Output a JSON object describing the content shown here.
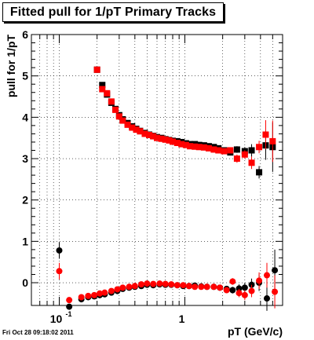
{
  "chart_data": {
    "type": "scatter",
    "title": "Fitted pull for 1/pT  Primary Tracks",
    "xlabel": "pT (GeV/c)",
    "ylabel": "pull for 1/pT",
    "x_scale": "log",
    "xlim": [
      0.06,
      6.0
    ],
    "ylim": [
      -0.55,
      6.0
    ],
    "grid": true,
    "x_tick_labels": [
      {
        "value": 0.1,
        "base": "10",
        "exp": "-1"
      },
      {
        "value": 1,
        "base": "1",
        "exp": ""
      }
    ],
    "y_ticks": [
      0,
      1,
      2,
      3,
      4,
      5,
      6
    ],
    "series": [
      {
        "color": "#000000",
        "points": [
          [
            0.1,
            0.78,
            0.2
          ],
          [
            0.2,
            5.15,
            0
          ],
          [
            0.22,
            4.78,
            0
          ],
          [
            0.24,
            4.55,
            0
          ],
          [
            0.26,
            4.35,
            0
          ],
          [
            0.28,
            4.2,
            0
          ],
          [
            0.3,
            4.05,
            0
          ],
          [
            0.32,
            3.95,
            0
          ],
          [
            0.35,
            3.86,
            0
          ],
          [
            0.38,
            3.78,
            0
          ],
          [
            0.41,
            3.72,
            0
          ],
          [
            0.44,
            3.67,
            0
          ],
          [
            0.48,
            3.62,
            0
          ],
          [
            0.52,
            3.58,
            0
          ],
          [
            0.56,
            3.55,
            0
          ],
          [
            0.6,
            3.52,
            0
          ],
          [
            0.65,
            3.5,
            0
          ],
          [
            0.7,
            3.47,
            0
          ],
          [
            0.75,
            3.45,
            0
          ],
          [
            0.8,
            3.43,
            0
          ],
          [
            0.87,
            3.42,
            0
          ],
          [
            0.94,
            3.4,
            0
          ],
          [
            1.02,
            3.37,
            0
          ],
          [
            1.1,
            3.35,
            0
          ],
          [
            1.2,
            3.35,
            0
          ],
          [
            1.3,
            3.33,
            0
          ],
          [
            1.42,
            3.32,
            0
          ],
          [
            1.55,
            3.3,
            0
          ],
          [
            1.7,
            3.28,
            0
          ],
          [
            1.85,
            3.25,
            0
          ],
          [
            2.05,
            3.2,
            0
          ],
          [
            2.3,
            3.15,
            0
          ],
          [
            2.6,
            3.22,
            0.08
          ],
          [
            3.0,
            3.18,
            0.1
          ],
          [
            3.4,
            3.2,
            0.15
          ],
          [
            3.9,
            2.67,
            0.15
          ],
          [
            4.4,
            3.32,
            0.35
          ],
          [
            5.0,
            3.28,
            0.6
          ],
          [
            0.12,
            -0.58,
            0
          ],
          [
            0.15,
            -0.4,
            0
          ],
          [
            0.17,
            -0.35,
            0
          ],
          [
            0.19,
            -0.33,
            0
          ],
          [
            0.21,
            -0.3,
            0
          ],
          [
            0.23,
            -0.28,
            0
          ],
          [
            0.26,
            -0.24,
            0
          ],
          [
            0.29,
            -0.2,
            0
          ],
          [
            0.32,
            -0.15,
            0
          ],
          [
            0.36,
            -0.12,
            0
          ],
          [
            0.4,
            -0.1,
            0
          ],
          [
            0.45,
            -0.08,
            0
          ],
          [
            0.5,
            -0.05,
            0
          ],
          [
            0.56,
            -0.06,
            0
          ],
          [
            0.63,
            -0.04,
            0
          ],
          [
            0.7,
            -0.05,
            0
          ],
          [
            0.78,
            -0.05,
            0
          ],
          [
            0.87,
            -0.06,
            0
          ],
          [
            0.97,
            -0.08,
            0
          ],
          [
            1.08,
            -0.08,
            0
          ],
          [
            1.2,
            -0.07,
            0
          ],
          [
            1.35,
            -0.09,
            0
          ],
          [
            1.5,
            -0.1,
            0
          ],
          [
            1.7,
            -0.1,
            0
          ],
          [
            1.9,
            -0.12,
            0
          ],
          [
            2.15,
            -0.15,
            0.05
          ],
          [
            2.4,
            -0.18,
            0.08
          ],
          [
            2.7,
            -0.14,
            0.1
          ],
          [
            3.0,
            -0.12,
            0.12
          ],
          [
            3.4,
            -0.05,
            0.15
          ],
          [
            3.9,
            0.0,
            0.2
          ],
          [
            4.5,
            -0.38,
            0.3
          ],
          [
            5.2,
            0.3,
            0.5
          ]
        ]
      },
      {
        "color": "#ff0000",
        "points": [
          [
            0.1,
            0.28,
            0.2
          ],
          [
            0.2,
            5.15,
            0
          ],
          [
            0.22,
            4.68,
            0
          ],
          [
            0.24,
            4.58,
            0
          ],
          [
            0.26,
            4.38,
            0
          ],
          [
            0.28,
            4.18,
            0
          ],
          [
            0.3,
            4.02,
            0
          ],
          [
            0.32,
            3.92,
            0
          ],
          [
            0.35,
            3.82,
            0
          ],
          [
            0.38,
            3.75,
            0
          ],
          [
            0.41,
            3.7,
            0
          ],
          [
            0.44,
            3.66,
            0
          ],
          [
            0.48,
            3.6,
            0
          ],
          [
            0.52,
            3.57,
            0
          ],
          [
            0.56,
            3.54,
            0
          ],
          [
            0.6,
            3.5,
            0
          ],
          [
            0.65,
            3.48,
            0
          ],
          [
            0.7,
            3.46,
            0
          ],
          [
            0.75,
            3.44,
            0
          ],
          [
            0.8,
            3.41,
            0
          ],
          [
            0.87,
            3.38,
            0
          ],
          [
            0.94,
            3.35,
            0
          ],
          [
            1.02,
            3.33,
            0
          ],
          [
            1.1,
            3.3,
            0
          ],
          [
            1.2,
            3.29,
            0
          ],
          [
            1.3,
            3.28,
            0
          ],
          [
            1.42,
            3.27,
            0
          ],
          [
            1.55,
            3.25,
            0
          ],
          [
            1.7,
            3.22,
            0
          ],
          [
            1.85,
            3.2,
            0
          ],
          [
            2.05,
            3.18,
            0
          ],
          [
            2.3,
            3.2,
            0
          ],
          [
            2.6,
            3.0,
            0.1
          ],
          [
            3.0,
            3.1,
            0.1
          ],
          [
            3.4,
            2.9,
            0.15
          ],
          [
            3.9,
            3.28,
            0.15
          ],
          [
            4.4,
            3.58,
            0.35
          ],
          [
            5.0,
            3.42,
            0.5
          ],
          [
            0.12,
            -0.42,
            0
          ],
          [
            0.15,
            -0.35,
            0
          ],
          [
            0.17,
            -0.32,
            0
          ],
          [
            0.19,
            -0.3,
            0
          ],
          [
            0.21,
            -0.26,
            0
          ],
          [
            0.23,
            -0.24,
            0
          ],
          [
            0.26,
            -0.2,
            0
          ],
          [
            0.29,
            -0.16,
            0
          ],
          [
            0.32,
            -0.12,
            0
          ],
          [
            0.36,
            -0.1,
            0
          ],
          [
            0.4,
            -0.08,
            0
          ],
          [
            0.45,
            -0.04,
            0
          ],
          [
            0.5,
            -0.02,
            0
          ],
          [
            0.56,
            -0.03,
            0
          ],
          [
            0.63,
            -0.02,
            0
          ],
          [
            0.7,
            -0.03,
            0
          ],
          [
            0.78,
            -0.04,
            0
          ],
          [
            0.87,
            -0.06,
            0
          ],
          [
            0.97,
            -0.06,
            0
          ],
          [
            1.08,
            -0.08,
            0
          ],
          [
            1.2,
            -0.1,
            0
          ],
          [
            1.35,
            -0.1,
            0
          ],
          [
            1.5,
            -0.1,
            0
          ],
          [
            1.7,
            -0.1,
            0
          ],
          [
            1.9,
            -0.12,
            0
          ],
          [
            2.15,
            -0.18,
            0.05
          ],
          [
            2.4,
            0.03,
            0.08
          ],
          [
            2.7,
            -0.25,
            0.1
          ],
          [
            3.0,
            -0.3,
            0.12
          ],
          [
            3.4,
            -0.2,
            0.15
          ],
          [
            3.9,
            0.05,
            0.2
          ],
          [
            4.5,
            0.18,
            0.3
          ],
          [
            5.2,
            -0.22,
            0.4
          ]
        ]
      }
    ]
  },
  "footer": {
    "timestamp": "Fri Oct 28 09:18:02 2011"
  }
}
